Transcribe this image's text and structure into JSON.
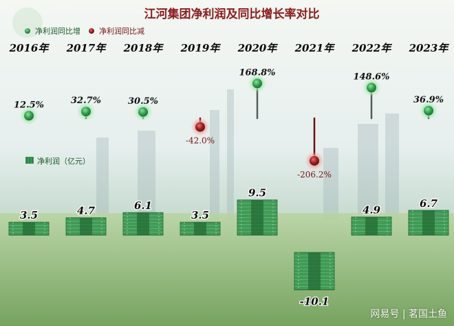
{
  "chart_data": {
    "type": "bar",
    "title": "江河集团净利润及同比增长率对比",
    "legend": [
      {
        "label": "净利润同比增",
        "color": "#2e9e49"
      },
      {
        "label": "净利润同比减",
        "color": "#9a1d1d"
      }
    ],
    "bar_legend_label": "净利润（亿元）",
    "categories": [
      "2016年",
      "2017年",
      "2018年",
      "2019年",
      "2020年",
      "2021年",
      "2022年",
      "2023年"
    ],
    "series": [
      {
        "name": "净利润（亿元）",
        "values": [
          3.5,
          4.7,
          6.1,
          3.5,
          9.5,
          -10.1,
          4.9,
          6.7
        ]
      },
      {
        "name": "同比增长率",
        "values": [
          12.5,
          32.7,
          30.5,
          -42.0,
          168.8,
          -206.2,
          148.6,
          36.9
        ]
      }
    ],
    "value_labels": [
      "3.5",
      "4.7",
      "6.1",
      "3.5",
      "9.5",
      "-10.1",
      "4.9",
      "6.7"
    ],
    "growth_labels": [
      "12.5%",
      "32.7%",
      "30.5%",
      "-42.0%",
      "168.8%",
      "-206.2%",
      "148.6%",
      "36.9%"
    ],
    "colors": {
      "bar": "#3f9a55",
      "bar_dark": "#1f5f2f",
      "positive": "#2e9e49",
      "negative": "#9a1d1d",
      "title": "#8b1a1a",
      "year": "#0a0a0a"
    }
  },
  "watermark": "网易号 | 茗国土鱼"
}
